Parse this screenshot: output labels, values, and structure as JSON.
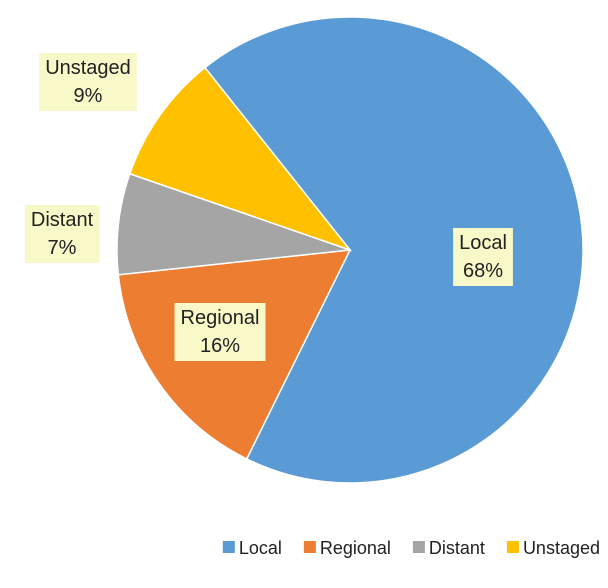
{
  "chart_data": {
    "type": "pie",
    "categories": [
      "Local",
      "Regional",
      "Distant",
      "Unstaged"
    ],
    "values": [
      68,
      16,
      7,
      9
    ],
    "value_labels": [
      "68%",
      "16%",
      "7%",
      "9%"
    ],
    "colors": [
      "#5b9bd5",
      "#ed7d31",
      "#a5a5a5",
      "#ffc000"
    ],
    "legend": "bottom"
  }
}
